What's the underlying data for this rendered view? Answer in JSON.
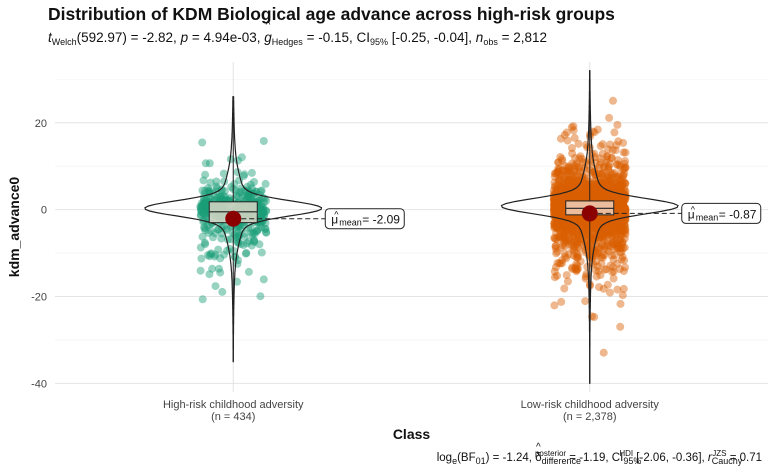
{
  "title": "Distribution of KDM Biological age advance across high-risk groups",
  "subtitle": {
    "t_label": "t",
    "t_sub": "Welch",
    "t_value": "(592.97) = -2.82, ",
    "p_label": "p",
    "p_value": " = 4.94e-03, ",
    "g_label": "g",
    "g_sub": "Hedges",
    "g_value": " = -0.15, CI",
    "ci_sub": "95%",
    "ci_value": " [-0.25, -0.04], ",
    "n_label": "n",
    "n_sub": "obs",
    "n_value": " = 2,812"
  },
  "caption": {
    "bf_pre": "log",
    "bf_sub": "e",
    "bf_post": "(BF",
    "bf_sub2": "01",
    "bf_val": ") = -1.24, ",
    "delta_sup": "posterior",
    "delta_sub": "difference",
    "delta_val": " = -1.19, CI",
    "ci_sup": "HDI",
    "ci_sub": "95%",
    "ci_val": " [-2.06, -0.36], ",
    "r_label": "r",
    "r_sup": "JZS",
    "r_sub": "Cauchy",
    "r_val": " = 0.71"
  },
  "chart_data": {
    "type": "violin",
    "xlabel": "Class",
    "ylabel": "kdm_advance0",
    "ylim": [
      -42,
      34
    ],
    "yticks": [
      -40,
      -20,
      0,
      20
    ],
    "grid": true,
    "groups": [
      {
        "name": "High-risk childhood adversity",
        "n_label": "(n = 434)",
        "n": 434,
        "mean": -2.09,
        "mean_label": "-2.09",
        "box": {
          "q1": -3.0,
          "median": -0.5,
          "q3": 1.8
        },
        "whisker": [
          -35,
          26
        ],
        "color": "#1B9E77",
        "min": -35,
        "max": 26
      },
      {
        "name": "Low-risk childhood adversity",
        "n_label": "(n = 2,378)",
        "n": 2378,
        "mean": -0.87,
        "mean_label": "-0.87",
        "box": {
          "q1": -1.2,
          "median": 0.3,
          "q3": 2.0
        },
        "whisker": [
          -40,
          32
        ],
        "color": "#D95F02",
        "min": -40,
        "max": 32
      }
    ],
    "mean_point_color": "#8B0000"
  }
}
